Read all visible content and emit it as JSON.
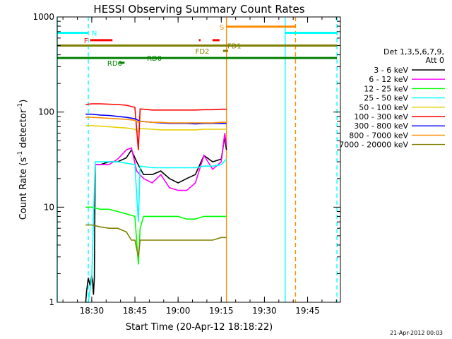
{
  "chart_data": {
    "type": "line",
    "title": "HESSI Observing Summary Count Rates",
    "xlabel": "Start Time (20-Apr-12 18:18:22)",
    "ylabel_main": "Count Rate (s",
    "ylabel_sup1": "-1",
    "ylabel_mid": " detector",
    "ylabel_sup2": "-1",
    "ylabel_end": ")",
    "y_scale": "log",
    "ylim": [
      1,
      1000
    ],
    "xlim_minutes": [
      18.3,
      19.94
    ],
    "x_ticks": [
      {
        "label": "18:30",
        "t": 18.5
      },
      {
        "label": "18:45",
        "t": 18.75
      },
      {
        "label": "19:00",
        "t": 19.0
      },
      {
        "label": "19:15",
        "t": 19.25
      },
      {
        "label": "19:30",
        "t": 19.5
      },
      {
        "label": "19:45",
        "t": 19.75
      }
    ],
    "y_ticks": [
      {
        "label": "1",
        "v": 1
      },
      {
        "label": "10",
        "v": 10
      },
      {
        "label": "100",
        "v": 100
      },
      {
        "label": "1000",
        "v": 1000
      }
    ],
    "legend": {
      "header1": "Det 1,3,5,6,7,9,",
      "header2": "Att 0",
      "entries": [
        {
          "label": "3 - 6 keV",
          "color": "#000000"
        },
        {
          "label": "6 - 12 keV",
          "color": "#ff00ff"
        },
        {
          "label": "12 - 25 keV",
          "color": "#00ff00"
        },
        {
          "label": "25 - 50 keV",
          "color": "#00ffff"
        },
        {
          "label": "50 - 100 keV",
          "color": "#e6d000"
        },
        {
          "label": "100 - 300 keV",
          "color": "#ff0000"
        },
        {
          "label": "300 - 800 keV",
          "color": "#0000ff"
        },
        {
          "label": "800 - 7000 keV",
          "color": "#ff8c00"
        },
        {
          "label": "7000 - 20000 keV",
          "color": "#808000"
        }
      ]
    },
    "series": [
      {
        "name": "3 - 6 keV",
        "color": "#000000",
        "points": [
          [
            18.465,
            1
          ],
          [
            18.47,
            1.3
          ],
          [
            18.48,
            1.8
          ],
          [
            18.49,
            1.5
          ],
          [
            18.5,
            1.9
          ],
          [
            18.505,
            1.7
          ],
          [
            18.51,
            1.2
          ],
          [
            18.515,
            1.8
          ],
          [
            18.52,
            28
          ],
          [
            18.55,
            28
          ],
          [
            18.6,
            30
          ],
          [
            18.65,
            30
          ],
          [
            18.7,
            33
          ],
          [
            18.73,
            40
          ],
          [
            18.76,
            30
          ],
          [
            18.8,
            22
          ],
          [
            18.85,
            22
          ],
          [
            18.9,
            24
          ],
          [
            18.95,
            20
          ],
          [
            19.0,
            18
          ],
          [
            19.05,
            20
          ],
          [
            19.1,
            22
          ],
          [
            19.15,
            35
          ],
          [
            19.2,
            30
          ],
          [
            19.25,
            32
          ],
          [
            19.27,
            55
          ],
          [
            19.28,
            40
          ]
        ]
      },
      {
        "name": "6 - 12 keV",
        "color": "#ff00ff",
        "points": [
          [
            18.52,
            28
          ],
          [
            18.55,
            28
          ],
          [
            18.6,
            28
          ],
          [
            18.65,
            32
          ],
          [
            18.7,
            40
          ],
          [
            18.73,
            42
          ],
          [
            18.76,
            24
          ],
          [
            18.8,
            20
          ],
          [
            18.85,
            18
          ],
          [
            18.9,
            22
          ],
          [
            18.95,
            16
          ],
          [
            19.0,
            15
          ],
          [
            19.05,
            15
          ],
          [
            19.1,
            18
          ],
          [
            19.15,
            35
          ],
          [
            19.2,
            25
          ],
          [
            19.25,
            30
          ],
          [
            19.27,
            60
          ],
          [
            19.28,
            45
          ]
        ]
      },
      {
        "name": "12 - 25 keV",
        "color": "#00ff00",
        "points": [
          [
            18.465,
            10
          ],
          [
            18.5,
            10
          ],
          [
            18.55,
            9.5
          ],
          [
            18.6,
            9.5
          ],
          [
            18.65,
            9
          ],
          [
            18.7,
            8.5
          ],
          [
            18.75,
            8
          ],
          [
            18.77,
            2.5
          ],
          [
            18.78,
            6
          ],
          [
            18.8,
            8
          ],
          [
            18.85,
            8
          ],
          [
            18.9,
            8
          ],
          [
            18.95,
            8
          ],
          [
            19.0,
            8
          ],
          [
            19.05,
            7.5
          ],
          [
            19.1,
            7.5
          ],
          [
            19.15,
            8
          ],
          [
            19.2,
            8
          ],
          [
            19.25,
            8
          ],
          [
            19.28,
            8
          ]
        ]
      },
      {
        "name": "25 - 50 keV",
        "color": "#00ffff",
        "points": [
          [
            18.465,
            1
          ],
          [
            18.48,
            1
          ],
          [
            18.5,
            1.8
          ],
          [
            18.52,
            30
          ],
          [
            18.55,
            30
          ],
          [
            18.6,
            30
          ],
          [
            18.65,
            30
          ],
          [
            18.7,
            29
          ],
          [
            18.75,
            28
          ],
          [
            18.77,
            7
          ],
          [
            18.78,
            27
          ],
          [
            18.85,
            26
          ],
          [
            18.9,
            26
          ],
          [
            18.95,
            26
          ],
          [
            19.0,
            26
          ],
          [
            19.05,
            26
          ],
          [
            19.1,
            26
          ],
          [
            19.15,
            27
          ],
          [
            19.2,
            27
          ],
          [
            19.25,
            28
          ],
          [
            19.28,
            32
          ]
        ]
      },
      {
        "name": "50 - 100 keV",
        "color": "#e6d000",
        "points": [
          [
            18.465,
            72
          ],
          [
            18.5,
            72
          ],
          [
            18.55,
            71
          ],
          [
            18.6,
            70
          ],
          [
            18.65,
            69
          ],
          [
            18.7,
            68
          ],
          [
            18.75,
            66
          ],
          [
            18.77,
            62
          ],
          [
            18.78,
            67
          ],
          [
            18.85,
            66
          ],
          [
            18.9,
            65
          ],
          [
            18.95,
            65
          ],
          [
            19.0,
            65
          ],
          [
            19.05,
            65
          ],
          [
            19.1,
            65
          ],
          [
            19.15,
            66
          ],
          [
            19.2,
            66
          ],
          [
            19.25,
            66
          ],
          [
            19.28,
            66
          ]
        ]
      },
      {
        "name": "100 - 300 keV",
        "color": "#ff0000",
        "points": [
          [
            18.465,
            120
          ],
          [
            18.5,
            122
          ],
          [
            18.55,
            122
          ],
          [
            18.6,
            121
          ],
          [
            18.65,
            120
          ],
          [
            18.7,
            118
          ],
          [
            18.75,
            112
          ],
          [
            18.77,
            40
          ],
          [
            18.78,
            108
          ],
          [
            18.85,
            105
          ],
          [
            18.9,
            105
          ],
          [
            18.95,
            105
          ],
          [
            19.0,
            105
          ],
          [
            19.05,
            105
          ],
          [
            19.1,
            105
          ],
          [
            19.15,
            106
          ],
          [
            19.2,
            106
          ],
          [
            19.25,
            107
          ],
          [
            19.28,
            107
          ]
        ]
      },
      {
        "name": "300 - 800 keV",
        "color": "#0000ff",
        "points": [
          [
            18.465,
            95
          ],
          [
            18.5,
            95
          ],
          [
            18.55,
            93
          ],
          [
            18.6,
            92
          ],
          [
            18.65,
            90
          ],
          [
            18.7,
            88
          ],
          [
            18.75,
            85
          ],
          [
            18.77,
            82
          ],
          [
            18.78,
            80
          ],
          [
            18.85,
            78
          ],
          [
            18.9,
            77
          ],
          [
            18.95,
            76
          ],
          [
            19.0,
            76
          ],
          [
            19.05,
            76
          ],
          [
            19.1,
            75
          ],
          [
            19.15,
            76
          ],
          [
            19.2,
            76
          ],
          [
            19.25,
            76
          ],
          [
            19.28,
            76
          ]
        ]
      },
      {
        "name": "800 - 7000 keV",
        "color": "#ff8c00",
        "points": [
          [
            18.465,
            88
          ],
          [
            18.5,
            88
          ],
          [
            18.55,
            87
          ],
          [
            18.6,
            86
          ],
          [
            18.65,
            85
          ],
          [
            18.7,
            84
          ],
          [
            18.75,
            82
          ],
          [
            18.77,
            78
          ],
          [
            18.78,
            80
          ],
          [
            18.85,
            78
          ],
          [
            18.9,
            78
          ],
          [
            18.95,
            77
          ],
          [
            19.0,
            77
          ],
          [
            19.05,
            77
          ],
          [
            19.1,
            77
          ],
          [
            19.15,
            77
          ],
          [
            19.2,
            77
          ],
          [
            19.25,
            78
          ],
          [
            19.28,
            78
          ]
        ]
      },
      {
        "name": "7000 - 20000 keV",
        "color": "#808000",
        "points": [
          [
            18.465,
            6.5
          ],
          [
            18.5,
            6.5
          ],
          [
            18.55,
            6.2
          ],
          [
            18.6,
            6
          ],
          [
            18.65,
            6
          ],
          [
            18.7,
            5.5
          ],
          [
            18.73,
            4.5
          ],
          [
            18.75,
            4.5
          ],
          [
            18.77,
            3
          ],
          [
            18.78,
            4.5
          ],
          [
            18.85,
            4.5
          ],
          [
            18.9,
            4.5
          ],
          [
            18.95,
            4.5
          ],
          [
            19.0,
            4.5
          ],
          [
            19.05,
            4.5
          ],
          [
            19.1,
            4.5
          ],
          [
            19.15,
            4.5
          ],
          [
            19.2,
            4.5
          ],
          [
            19.25,
            4.8
          ],
          [
            19.28,
            4.8
          ]
        ]
      }
    ],
    "flags": [
      {
        "label": "N",
        "color": "#00ffff",
        "v": 680,
        "segments": [
          [
            18.3,
            18.48
          ],
          [
            19.62,
            19.92
          ]
        ],
        "label_t": 18.5
      },
      {
        "label": "F",
        "color": "#ff0000",
        "v": 570,
        "segments": [
          [
            18.49,
            18.62
          ],
          [
            19.12,
            19.13
          ],
          [
            19.2,
            19.24
          ]
        ],
        "label_t": 18.455
      },
      {
        "label": "S",
        "color": "#ff8c00",
        "v": 790,
        "segments": [
          [
            19.28,
            19.68
          ]
        ],
        "label_t": 19.24
      },
      {
        "label": "FD1",
        "color": "#808000",
        "v": 500,
        "segments": [
          [
            18.3,
            19.92
          ]
        ],
        "label_t": 19.285
      },
      {
        "label": "FD2",
        "color": "#808000",
        "v": 440,
        "segments": [
          [
            19.26,
            19.29
          ]
        ],
        "label_t": 19.1
      },
      {
        "label": "RD0",
        "color": "#008000",
        "v": 370,
        "segments": [
          [
            18.3,
            19.92
          ]
        ],
        "label_t": 18.82
      },
      {
        "label": "RD6",
        "color": "#008000",
        "v": 330,
        "segments": [
          [
            18.66,
            18.69
          ]
        ],
        "label_t": 18.59
      }
    ],
    "vlines": [
      {
        "t": 18.3,
        "color": "#00ffff",
        "style": "solid"
      },
      {
        "t": 18.48,
        "color": "#00ffff",
        "style": "dashed"
      },
      {
        "t": 19.28,
        "color": "#ff8c00",
        "style": "solid"
      },
      {
        "t": 19.62,
        "color": "#00ffff",
        "style": "solid"
      },
      {
        "t": 19.68,
        "color": "#ff8c00",
        "style": "dashed"
      },
      {
        "t": 19.92,
        "color": "#00ffff",
        "style": "dashed"
      }
    ],
    "timestamp": "21-Apr-2012 00:03"
  }
}
